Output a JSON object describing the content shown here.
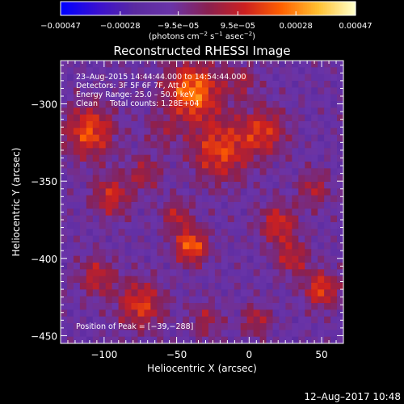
{
  "chart_data": {
    "type": "heatmap",
    "title": "Reconstructed RHESSI Image",
    "xlabel": "Heliocentric X (arcsec)",
    "ylabel": "Heliocentric Y (arcsec)",
    "xlim": [
      -130,
      65
    ],
    "ylim": [
      -455,
      -272
    ],
    "xticks": [
      -100,
      -50,
      0,
      50
    ],
    "xtick_labels": [
      "−100",
      "−50",
      "0",
      "50"
    ],
    "yticks": [
      -300,
      -350,
      -400,
      -450
    ],
    "ytick_labels": [
      "−300",
      "−350",
      "−400",
      "−450"
    ],
    "colorbar": {
      "vmin": -0.00047,
      "vmax": 0.00047,
      "ticks": [
        -0.00047,
        -0.00028,
        -9.5e-05,
        9.5e-05,
        0.00028,
        0.00047
      ],
      "tick_labels": [
        "−0.00047",
        "−0.00028",
        "−9.5e−05",
        "9.5e−05",
        "0.00028",
        "0.00047"
      ],
      "unit_parts": [
        "(photons cm",
        "−2",
        " s",
        "−1",
        " asec",
        "−2",
        ")"
      ]
    },
    "annotation_lines": [
      "23–Aug–2015 14:44:44.000 to 14:54:44.000",
      "Detectors: 3F 5F 6F 7F, Att 0",
      "Energy Range: 25.0 – 50.0 keV",
      "Clean     Total counts: 1.28E+04"
    ],
    "peak_label": "Position of Peak = [−39,−288]",
    "peak": [
      -39,
      -288
    ],
    "grid_cols": 44,
    "grid_rows": 42,
    "colormap": [
      "#0000ff",
      "#3a10d0",
      "#5a2aa0",
      "#6a34a8",
      "#8a2050",
      "#cc2020",
      "#ff6000",
      "#ffc030",
      "#ffffc8"
    ],
    "sources": [
      {
        "x": -39,
        "y": -292,
        "amp": 0.0004,
        "s": 13
      },
      {
        "x": -20,
        "y": -330,
        "amp": 0.0003,
        "s": 14
      },
      {
        "x": 10,
        "y": -318,
        "amp": 0.00026,
        "s": 11
      },
      {
        "x": -110,
        "y": -318,
        "amp": 0.00032,
        "s": 12
      },
      {
        "x": -95,
        "y": -360,
        "amp": 0.00025,
        "s": 9
      },
      {
        "x": -72,
        "y": -345,
        "amp": 0.00018,
        "s": 8
      },
      {
        "x": -40,
        "y": -392,
        "amp": 0.00036,
        "s": 8
      },
      {
        "x": -50,
        "y": -372,
        "amp": 0.0002,
        "s": 7
      },
      {
        "x": -75,
        "y": -430,
        "amp": 0.00028,
        "s": 11
      },
      {
        "x": -105,
        "y": -412,
        "amp": 0.00022,
        "s": 9
      },
      {
        "x": 20,
        "y": -378,
        "amp": 0.00026,
        "s": 9
      },
      {
        "x": 30,
        "y": -400,
        "amp": 0.00022,
        "s": 8
      },
      {
        "x": 50,
        "y": -420,
        "amp": 0.0003,
        "s": 8
      },
      {
        "x": -30,
        "y": -440,
        "amp": 0.00016,
        "s": 8
      },
      {
        "x": 5,
        "y": -440,
        "amp": 0.0002,
        "s": 7
      },
      {
        "x": 45,
        "y": -355,
        "amp": 0.00018,
        "s": 8
      },
      {
        "x": -5,
        "y": -285,
        "amp": 0.00015,
        "s": 8
      },
      {
        "x": -60,
        "y": -318,
        "amp": 0.00012,
        "s": 8
      }
    ]
  },
  "timestamp": "12–Aug–2017 10:48"
}
